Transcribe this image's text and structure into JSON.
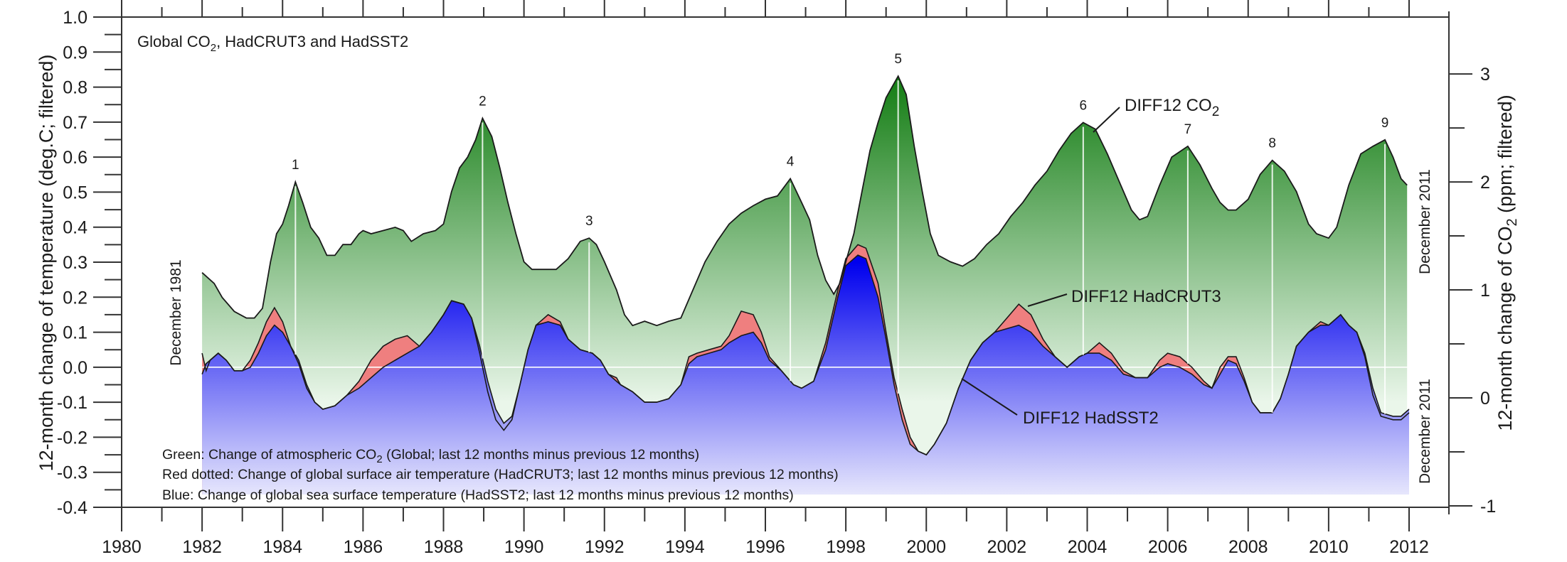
{
  "chart_data": {
    "type": "area",
    "title": "Global CO2, HadCRUT3 and HadSST2",
    "title_parts": {
      "pre": "Global CO",
      "sub": "2",
      "post": ", HadCRUT3 and HadSST2"
    },
    "xlabel": "",
    "ylabel": "12-month change of temperature (deg.C; filtered)",
    "ylabel_right": {
      "pre": "12-month change of CO",
      "sub": "2",
      "post": " (ppm; filtered)"
    },
    "xlim": [
      1980,
      2012
    ],
    "ylim": [
      -0.4,
      1.0
    ],
    "ylim_right": [
      -1,
      3.4
    ],
    "right_axis_offset_at_zero_temp_ppm": 0.284,
    "right_axis_ppm_per_degC": 3.243,
    "x_ticks": [
      "1980",
      "1982",
      "1984",
      "1986",
      "1988",
      "1990",
      "1992",
      "1994",
      "1996",
      "1998",
      "2000",
      "2002",
      "2004",
      "2006",
      "2008",
      "2010",
      "2012"
    ],
    "y_ticks": [
      "1.0",
      "0.9",
      "0.8",
      "0.7",
      "0.6",
      "0.5",
      "0.4",
      "0.3",
      "0.2",
      "0.1",
      "0.0",
      "-0.1",
      "-0.2",
      "-0.3",
      "-0.4"
    ],
    "y_ticks_right": [
      "3",
      "2",
      "1",
      "0",
      "-1"
    ],
    "grid": false,
    "zero_line": true,
    "start_label": "December 1981",
    "end_label_co2": "December 2011",
    "end_label_temp": "December 2011",
    "colors": {
      "co2_top": "#0e7a0e",
      "co2_bottom": "#eaf6ea",
      "crut": "#ef7f7f",
      "sst_top": "#0000ee",
      "sst_bottom": "#f3f3fd",
      "outline": "#1a1a1a"
    },
    "series_labels": {
      "co2": {
        "pre": "DIFF12 CO",
        "sub": "2"
      },
      "crut": "DIFF12 HadCRUT3",
      "sst": "DIFF12 HadSST2"
    },
    "legend": [
      {
        "pre": "Green: Change of atmospheric CO",
        "sub": "2",
        "post": " (Global; last 12 months minus previous 12 months)"
      },
      {
        "pre": "Red dotted: Change of global surface air temperature (HadCRUT3; last 12 months minus previous 12 months)",
        "sub": "",
        "post": ""
      },
      {
        "pre": "Blue: Change of global sea surface temperature (HadSST2; last 12 months minus previous 12 months)",
        "sub": "",
        "post": ""
      }
    ],
    "peaks": [
      {
        "label": "1",
        "x": 1984.32
      },
      {
        "label": "2",
        "x": 1988.97
      },
      {
        "label": "3",
        "x": 1991.62
      },
      {
        "label": "4",
        "x": 1996.62
      },
      {
        "label": "5",
        "x": 1999.3
      },
      {
        "label": "6",
        "x": 2003.9
      },
      {
        "label": "7",
        "x": 2006.5
      },
      {
        "label": "8",
        "x": 2008.6
      },
      {
        "label": "9",
        "x": 2011.4
      }
    ],
    "series": [
      {
        "name": "DIFF12 CO2 (ppm, right axis)",
        "x": [
          1982.0,
          1982.3,
          1982.5,
          1982.8,
          1983.1,
          1983.3,
          1983.5,
          1983.7,
          1983.85,
          1984.0,
          1984.15,
          1984.32,
          1984.5,
          1984.7,
          1984.9,
          1985.1,
          1985.3,
          1985.5,
          1985.7,
          1985.9,
          1986.0,
          1986.2,
          1986.5,
          1986.8,
          1987.0,
          1987.2,
          1987.5,
          1987.8,
          1988.0,
          1988.2,
          1988.4,
          1988.6,
          1988.8,
          1988.97,
          1989.2,
          1989.4,
          1989.6,
          1989.8,
          1990.0,
          1990.2,
          1990.5,
          1990.8,
          1991.1,
          1991.4,
          1991.62,
          1991.8,
          1992.0,
          1992.3,
          1992.5,
          1992.7,
          1993.0,
          1993.3,
          1993.6,
          1993.9,
          1994.2,
          1994.5,
          1994.8,
          1995.1,
          1995.4,
          1995.7,
          1996.0,
          1996.3,
          1996.62,
          1996.9,
          1997.1,
          1997.3,
          1997.5,
          1997.7,
          1997.85,
          1998.0,
          1998.2,
          1998.4,
          1998.6,
          1998.8,
          1999.0,
          1999.3,
          1999.5,
          1999.7,
          1999.9,
          2000.1,
          2000.3,
          2000.6,
          2000.9,
          2001.2,
          2001.5,
          2001.8,
          2002.1,
          2002.4,
          2002.7,
          2003.0,
          2003.3,
          2003.6,
          2003.9,
          2004.2,
          2004.5,
          2004.8,
          2005.1,
          2005.3,
          2005.5,
          2005.8,
          2006.1,
          2006.5,
          2006.8,
          2007.1,
          2007.3,
          2007.5,
          2007.7,
          2008.0,
          2008.3,
          2008.6,
          2008.9,
          2009.2,
          2009.5,
          2009.7,
          2010.0,
          2010.2,
          2010.5,
          2010.8,
          2011.1,
          2011.4,
          2011.6,
          2011.8,
          2011.95
        ],
        "values": [
          1.16,
          1.06,
          0.93,
          0.8,
          0.74,
          0.74,
          0.83,
          1.26,
          1.52,
          1.61,
          1.78,
          2.0,
          1.81,
          1.58,
          1.48,
          1.32,
          1.32,
          1.42,
          1.42,
          1.52,
          1.55,
          1.52,
          1.55,
          1.58,
          1.55,
          1.45,
          1.52,
          1.55,
          1.61,
          1.91,
          2.13,
          2.23,
          2.39,
          2.59,
          2.42,
          2.13,
          1.81,
          1.52,
          1.26,
          1.19,
          1.19,
          1.19,
          1.29,
          1.45,
          1.48,
          1.42,
          1.26,
          1.0,
          0.77,
          0.67,
          0.71,
          0.67,
          0.71,
          0.74,
          1.0,
          1.26,
          1.45,
          1.61,
          1.71,
          1.78,
          1.84,
          1.87,
          2.03,
          1.81,
          1.65,
          1.32,
          1.09,
          0.96,
          1.06,
          1.26,
          1.52,
          1.91,
          2.29,
          2.55,
          2.78,
          2.98,
          2.81,
          2.33,
          1.91,
          1.52,
          1.32,
          1.26,
          1.22,
          1.29,
          1.42,
          1.52,
          1.68,
          1.81,
          1.97,
          2.1,
          2.29,
          2.45,
          2.55,
          2.49,
          2.26,
          2.0,
          1.74,
          1.65,
          1.68,
          1.97,
          2.23,
          2.33,
          2.16,
          1.94,
          1.81,
          1.74,
          1.74,
          1.84,
          2.07,
          2.2,
          2.1,
          1.91,
          1.61,
          1.52,
          1.48,
          1.58,
          1.97,
          2.26,
          2.33,
          2.39,
          2.23,
          2.03,
          1.97
        ]
      },
      {
        "name": "DIFF12 HadCRUT3 (deg.C)",
        "x": [
          1982.0,
          1982.1,
          1982.2,
          1982.4,
          1982.6,
          1982.8,
          1983.0,
          1983.2,
          1983.4,
          1983.6,
          1983.8,
          1984.0,
          1984.2,
          1984.4,
          1984.6,
          1984.8,
          1985.0,
          1985.3,
          1985.6,
          1985.9,
          1986.2,
          1986.5,
          1986.8,
          1987.1,
          1987.4,
          1987.7,
          1988.0,
          1988.2,
          1988.5,
          1988.7,
          1988.9,
          1989.1,
          1989.3,
          1989.5,
          1989.7,
          1989.9,
          1990.1,
          1990.3,
          1990.6,
          1990.9,
          1991.1,
          1991.4,
          1991.7,
          1991.9,
          1992.1,
          1992.3,
          1992.4,
          1992.7,
          1993.0,
          1993.3,
          1993.6,
          1993.9,
          1994.1,
          1994.3,
          1994.6,
          1994.9,
          1995.1,
          1995.4,
          1995.7,
          1995.9,
          1996.1,
          1996.4,
          1996.7,
          1996.9,
          1997.2,
          1997.5,
          1997.8,
          1998.0,
          1998.3,
          1998.5,
          1998.8,
          1999.0,
          1999.2,
          1999.4,
          1999.6,
          1999.8,
          2000.0,
          2000.2,
          2000.5,
          2000.8,
          2001.1,
          2001.4,
          2001.7,
          2002.0,
          2002.3,
          2002.6,
          2002.9,
          2003.2,
          2003.5,
          2003.8,
          2004.0,
          2004.3,
          2004.6,
          2004.9,
          2005.2,
          2005.5,
          2005.8,
          2006.0,
          2006.3,
          2006.6,
          2006.9,
          2007.1,
          2007.3,
          2007.5,
          2007.7,
          2007.9,
          2008.1,
          2008.3,
          2008.6,
          2008.8,
          2009.0,
          2009.2,
          2009.5,
          2009.8,
          2010.0,
          2010.3,
          2010.5,
          2010.7,
          2010.9,
          2011.1,
          2011.3,
          2011.6,
          2011.8,
          2012.0
        ],
        "values": [
          0.04,
          -0.01,
          0.02,
          0.04,
          0.02,
          -0.01,
          -0.01,
          0.02,
          0.07,
          0.13,
          0.17,
          0.13,
          0.06,
          0.01,
          -0.06,
          -0.1,
          -0.12,
          -0.11,
          -0.08,
          -0.04,
          0.02,
          0.06,
          0.08,
          0.09,
          0.06,
          0.1,
          0.15,
          0.19,
          0.18,
          0.14,
          0.04,
          -0.07,
          -0.15,
          -0.18,
          -0.15,
          -0.05,
          0.05,
          0.12,
          0.15,
          0.13,
          0.08,
          0.05,
          0.04,
          0.02,
          -0.02,
          -0.03,
          -0.05,
          -0.07,
          -0.1,
          -0.1,
          -0.09,
          -0.05,
          0.03,
          0.04,
          0.05,
          0.06,
          0.09,
          0.16,
          0.15,
          0.1,
          0.03,
          -0.01,
          -0.05,
          -0.06,
          -0.04,
          0.07,
          0.22,
          0.31,
          0.35,
          0.34,
          0.24,
          0.1,
          -0.03,
          -0.12,
          -0.2,
          -0.24,
          -0.25,
          -0.22,
          -0.16,
          -0.06,
          0.02,
          0.07,
          0.1,
          0.14,
          0.18,
          0.15,
          0.08,
          0.03,
          0.0,
          0.03,
          0.04,
          0.07,
          0.04,
          -0.01,
          -0.03,
          -0.03,
          0.02,
          0.04,
          0.03,
          0.0,
          -0.04,
          -0.06,
          0.0,
          0.03,
          0.03,
          -0.03,
          -0.1,
          -0.13,
          -0.13,
          -0.09,
          -0.02,
          0.06,
          0.1,
          0.13,
          0.12,
          0.15,
          0.12,
          0.1,
          0.03,
          -0.08,
          -0.14,
          -0.15,
          -0.15,
          -0.13
        ]
      },
      {
        "name": "DIFF12 HadSST2 (deg.C)",
        "x": [
          1982.0,
          1982.1,
          1982.2,
          1982.4,
          1982.6,
          1982.8,
          1983.0,
          1983.2,
          1983.4,
          1983.6,
          1983.8,
          1984.0,
          1984.2,
          1984.4,
          1984.6,
          1984.8,
          1985.0,
          1985.3,
          1985.6,
          1985.9,
          1986.2,
          1986.5,
          1986.8,
          1987.1,
          1987.4,
          1987.7,
          1988.0,
          1988.2,
          1988.5,
          1988.7,
          1988.9,
          1989.1,
          1989.3,
          1989.5,
          1989.7,
          1989.9,
          1990.1,
          1990.3,
          1990.6,
          1990.9,
          1991.1,
          1991.4,
          1991.7,
          1991.9,
          1992.1,
          1992.3,
          1992.4,
          1992.7,
          1993.0,
          1993.3,
          1993.6,
          1993.9,
          1994.1,
          1994.3,
          1994.6,
          1994.9,
          1995.1,
          1995.4,
          1995.7,
          1995.9,
          1996.1,
          1996.4,
          1996.7,
          1996.9,
          1997.2,
          1997.5,
          1997.8,
          1998.0,
          1998.3,
          1998.5,
          1998.8,
          1999.0,
          1999.2,
          1999.4,
          1999.6,
          1999.8,
          2000.0,
          2000.2,
          2000.5,
          2000.8,
          2001.1,
          2001.4,
          2001.7,
          2002.0,
          2002.3,
          2002.6,
          2002.9,
          2003.2,
          2003.5,
          2003.8,
          2004.0,
          2004.3,
          2004.6,
          2004.9,
          2005.2,
          2005.5,
          2005.8,
          2006.0,
          2006.3,
          2006.6,
          2006.9,
          2007.1,
          2007.3,
          2007.5,
          2007.7,
          2007.9,
          2008.1,
          2008.3,
          2008.6,
          2008.8,
          2009.0,
          2009.2,
          2009.5,
          2009.8,
          2010.0,
          2010.3,
          2010.5,
          2010.7,
          2010.9,
          2011.1,
          2011.3,
          2011.6,
          2011.8,
          2012.0
        ],
        "values": [
          -0.02,
          0.01,
          0.02,
          0.04,
          0.02,
          -0.01,
          -0.01,
          0.0,
          0.04,
          0.09,
          0.12,
          0.1,
          0.06,
          0.02,
          -0.05,
          -0.1,
          -0.12,
          -0.11,
          -0.08,
          -0.06,
          -0.03,
          0.0,
          0.02,
          0.04,
          0.06,
          0.1,
          0.15,
          0.19,
          0.18,
          0.14,
          0.06,
          -0.04,
          -0.12,
          -0.16,
          -0.14,
          -0.05,
          0.05,
          0.12,
          0.13,
          0.12,
          0.08,
          0.05,
          0.04,
          0.02,
          -0.02,
          -0.04,
          -0.05,
          -0.07,
          -0.1,
          -0.1,
          -0.09,
          -0.05,
          0.01,
          0.03,
          0.04,
          0.05,
          0.07,
          0.09,
          0.1,
          0.07,
          0.02,
          -0.01,
          -0.05,
          -0.06,
          -0.04,
          0.05,
          0.2,
          0.29,
          0.32,
          0.31,
          0.2,
          0.08,
          -0.05,
          -0.15,
          -0.22,
          -0.24,
          -0.25,
          -0.22,
          -0.16,
          -0.06,
          0.02,
          0.07,
          0.1,
          0.11,
          0.12,
          0.1,
          0.06,
          0.03,
          0.0,
          0.03,
          0.04,
          0.04,
          0.02,
          -0.02,
          -0.03,
          -0.03,
          0.0,
          0.01,
          0.0,
          -0.02,
          -0.05,
          -0.06,
          -0.02,
          0.02,
          0.01,
          -0.04,
          -0.1,
          -0.13,
          -0.13,
          -0.09,
          -0.02,
          0.06,
          0.1,
          0.12,
          0.12,
          0.15,
          0.12,
          0.1,
          0.04,
          -0.06,
          -0.13,
          -0.14,
          -0.14,
          -0.12
        ]
      }
    ]
  }
}
